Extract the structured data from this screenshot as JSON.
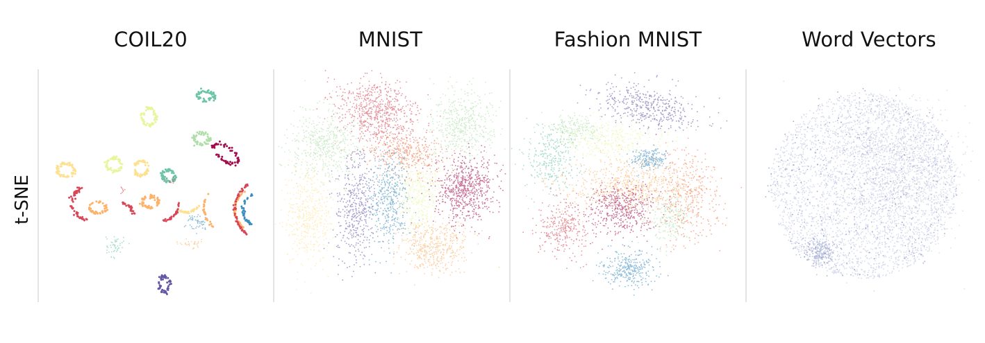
{
  "row_label": "t-SNE",
  "chart_data": [
    {
      "type": "scatter",
      "title": "COIL20",
      "xlabel": "",
      "ylabel": "",
      "grid": false,
      "legend": "none",
      "axis_range": [
        -1,
        1
      ],
      "palette": [
        "#9e0142",
        "#d53e4f",
        "#f46d43",
        "#fdae61",
        "#fee08b",
        "#e6f598",
        "#abdda4",
        "#66c2a5",
        "#3288bd",
        "#5e4fa2"
      ],
      "clusters": [
        {
          "shape": "ring",
          "color": "#66c2a5",
          "x": 0.46,
          "y": 0.82,
          "rx": 0.08,
          "ry": 0.04,
          "n": 60,
          "spread": 0.01
        },
        {
          "shape": "ring",
          "color": "#e6f598",
          "x": -0.06,
          "y": 0.63,
          "rx": 0.06,
          "ry": 0.08,
          "n": 60,
          "spread": 0.008
        },
        {
          "shape": "ring",
          "color": "#abdda4",
          "x": 0.42,
          "y": 0.43,
          "rx": 0.07,
          "ry": 0.05,
          "n": 60,
          "spread": 0.008
        },
        {
          "shape": "ring",
          "color": "#9e0142",
          "x": 0.64,
          "y": 0.29,
          "rx": 0.13,
          "ry": 0.06,
          "rot": -35,
          "n": 70,
          "spread": 0.008
        },
        {
          "shape": "ring",
          "color": "#fee08b",
          "x": -0.82,
          "y": 0.14,
          "rx": 0.08,
          "ry": 0.06,
          "n": 60,
          "spread": 0.008
        },
        {
          "shape": "ring",
          "color": "#e6f598",
          "x": -0.38,
          "y": 0.19,
          "rx": 0.07,
          "ry": 0.06,
          "n": 60,
          "spread": 0.008
        },
        {
          "shape": "ring",
          "color": "#fee08b",
          "x": -0.13,
          "y": 0.16,
          "rx": 0.06,
          "ry": 0.07,
          "n": 60,
          "spread": 0.008
        },
        {
          "shape": "ring",
          "color": "#66c2a5",
          "x": 0.12,
          "y": 0.09,
          "rx": 0.06,
          "ry": 0.05,
          "n": 60,
          "spread": 0.008
        },
        {
          "shape": "arc",
          "color": "#d53e4f",
          "x": -0.6,
          "y": -0.16,
          "r": 0.16,
          "a0": 120,
          "a1": 260,
          "n": 50,
          "spread": 0.008
        },
        {
          "shape": "ring",
          "color": "#fdae61",
          "x": -0.53,
          "y": -0.2,
          "rx": 0.08,
          "ry": 0.05,
          "n": 50,
          "spread": 0.008
        },
        {
          "shape": "ring",
          "color": "#fdae61",
          "x": -0.05,
          "y": -0.15,
          "rx": 0.08,
          "ry": 0.05,
          "n": 55,
          "spread": 0.008
        },
        {
          "shape": "arc",
          "color": "#d53e4f",
          "x": -0.32,
          "y": -0.28,
          "r": 0.12,
          "a0": 10,
          "a1": 80,
          "n": 25,
          "spread": 0.006
        },
        {
          "shape": "arc",
          "color": "#d53e4f",
          "x": 0.05,
          "y": -0.16,
          "r": 0.16,
          "a0": 280,
          "a1": 360,
          "n": 30,
          "spread": 0.006
        },
        {
          "shape": "arc",
          "color": "#fdae61",
          "x": 0.92,
          "y": -0.22,
          "r": 0.2,
          "a0": 120,
          "a1": 240,
          "n": 45,
          "spread": 0.006
        },
        {
          "shape": "arc",
          "color": "#3288bd",
          "x": 0.96,
          "y": -0.22,
          "r": 0.16,
          "a0": 120,
          "a1": 240,
          "n": 40,
          "spread": 0.006
        },
        {
          "shape": "arc",
          "color": "#d53e4f",
          "x": 1.0,
          "y": -0.22,
          "r": 0.28,
          "a0": 125,
          "a1": 235,
          "n": 55,
          "spread": 0.006
        },
        {
          "shape": "arc",
          "color": "#fee08b",
          "x": 0.28,
          "y": -0.1,
          "r": 0.14,
          "a0": 240,
          "a1": 330,
          "n": 30,
          "spread": 0.006
        },
        {
          "shape": "blob",
          "color": "#3288bd",
          "x": 0.37,
          "y": -0.33,
          "sx": 0.05,
          "sy": 0.04,
          "n": 50
        },
        {
          "shape": "arc",
          "color": "#fdae61",
          "x": 0.66,
          "y": -0.2,
          "r": 0.22,
          "a0": 140,
          "a1": 230,
          "n": 30,
          "spread": 0.006
        },
        {
          "shape": "blob",
          "color": "#fdae61",
          "x": 0.32,
          "y": -0.53,
          "sx": 0.07,
          "sy": 0.02,
          "n": 30
        },
        {
          "shape": "blob",
          "color": "#66c2a5",
          "x": -0.37,
          "y": -0.55,
          "sx": 0.04,
          "sy": 0.05,
          "n": 50
        },
        {
          "shape": "ring",
          "color": "#5e4fa2",
          "x": 0.08,
          "y": -0.9,
          "rx": 0.05,
          "ry": 0.07,
          "n": 50,
          "spread": 0.008
        },
        {
          "shape": "blob",
          "color": "#d53e4f",
          "x": 0.12,
          "y": 0.04,
          "sx": 0.03,
          "sy": 0.02,
          "n": 10
        },
        {
          "shape": "blob",
          "color": "#d53e4f",
          "x": -0.3,
          "y": -0.05,
          "sx": 0.02,
          "sy": 0.02,
          "n": 8
        }
      ]
    },
    {
      "type": "scatter",
      "title": "MNIST",
      "xlabel": "",
      "ylabel": "",
      "grid": false,
      "legend": "none",
      "axis_range": [
        -1,
        1
      ],
      "clusters": [
        {
          "shape": "blob",
          "color": "#d53e4f",
          "x": -0.12,
          "y": 0.68,
          "sx": 0.2,
          "sy": 0.13,
          "rot": -20,
          "n": 650
        },
        {
          "shape": "blob",
          "color": "#abdda4",
          "x": -0.6,
          "y": 0.38,
          "sx": 0.16,
          "sy": 0.16,
          "n": 500
        },
        {
          "shape": "blob",
          "color": "#abdda4",
          "x": 0.64,
          "y": 0.55,
          "sx": 0.14,
          "sy": 0.18,
          "n": 500
        },
        {
          "shape": "blob",
          "color": "#f46d43",
          "x": 0.12,
          "y": 0.3,
          "sx": 0.18,
          "sy": 0.09,
          "rot": -10,
          "n": 400
        },
        {
          "shape": "blob",
          "color": "#5e4fa2",
          "x": -0.32,
          "y": -0.2,
          "sx": 0.09,
          "sy": 0.25,
          "n": 450
        },
        {
          "shape": "blob",
          "color": "#3288bd",
          "x": -0.02,
          "y": -0.12,
          "sx": 0.09,
          "sy": 0.22,
          "n": 450
        },
        {
          "shape": "blob",
          "color": "#e6f598",
          "x": 0.25,
          "y": -0.08,
          "sx": 0.1,
          "sy": 0.17,
          "n": 350
        },
        {
          "shape": "blob",
          "color": "#9e0142",
          "x": 0.68,
          "y": -0.03,
          "sx": 0.14,
          "sy": 0.14,
          "n": 650
        },
        {
          "shape": "blob",
          "color": "#fee08b",
          "x": -0.75,
          "y": -0.28,
          "sx": 0.11,
          "sy": 0.24,
          "n": 450
        },
        {
          "shape": "blob",
          "color": "#fdae61",
          "x": 0.38,
          "y": -0.55,
          "sx": 0.16,
          "sy": 0.12,
          "n": 450
        }
      ]
    },
    {
      "type": "scatter",
      "title": "Fashion MNIST",
      "xlabel": "",
      "ylabel": "",
      "grid": false,
      "legend": "none",
      "axis_range": [
        -1,
        1
      ],
      "clusters": [
        {
          "shape": "blob",
          "color": "#5e4fa2",
          "x": 0.18,
          "y": 0.72,
          "sx": 0.22,
          "sy": 0.09,
          "rot": -10,
          "n": 450
        },
        {
          "shape": "blob",
          "color": "#abdda4",
          "x": -0.48,
          "y": 0.52,
          "sx": 0.12,
          "sy": 0.06,
          "n": 200
        },
        {
          "shape": "blob",
          "color": "#e6f598",
          "x": -0.12,
          "y": 0.42,
          "sx": 0.22,
          "sy": 0.08,
          "n": 300
        },
        {
          "shape": "blob",
          "color": "#66c2a5",
          "x": -0.68,
          "y": 0.25,
          "sx": 0.12,
          "sy": 0.15,
          "n": 300
        },
        {
          "shape": "blob",
          "color": "#3288bd",
          "x": 0.2,
          "y": 0.25,
          "sx": 0.08,
          "sy": 0.05,
          "n": 200
        },
        {
          "shape": "blob",
          "color": "#fdae61",
          "x": 0.02,
          "y": 0.0,
          "sx": 0.32,
          "sy": 0.12,
          "n": 650
        },
        {
          "shape": "blob",
          "color": "#9e0142",
          "x": -0.05,
          "y": -0.2,
          "sx": 0.14,
          "sy": 0.12,
          "n": 450
        },
        {
          "shape": "blob",
          "color": "#f46d43",
          "x": 0.55,
          "y": -0.1,
          "sx": 0.15,
          "sy": 0.22,
          "n": 350
        },
        {
          "shape": "blob",
          "color": "#abdda4",
          "x": 0.38,
          "y": -0.3,
          "sx": 0.1,
          "sy": 0.12,
          "n": 200
        },
        {
          "shape": "blob",
          "color": "#d53e4f",
          "x": -0.58,
          "y": -0.38,
          "sx": 0.12,
          "sy": 0.12,
          "n": 300
        },
        {
          "shape": "blob",
          "color": "#3288bd",
          "x": 0.02,
          "y": -0.75,
          "sx": 0.12,
          "sy": 0.08,
          "n": 300
        }
      ]
    },
    {
      "type": "scatter",
      "title": "Word Vectors",
      "xlabel": "",
      "ylabel": "",
      "grid": false,
      "legend": "none",
      "axis_range": [
        -1,
        1
      ],
      "clusters": [
        {
          "shape": "disc",
          "color": "#4a5aa8",
          "x": 0.0,
          "y": 0.0,
          "r": 0.85,
          "n": 3400,
          "opacity": 0.22
        },
        {
          "shape": "blob",
          "color": "#4a5aa8",
          "x": 0.3,
          "y": 0.15,
          "sx": 0.3,
          "sy": 0.3,
          "n": 1200,
          "opacity": 0.18
        },
        {
          "shape": "blob",
          "color": "#4a5aa8",
          "x": -0.4,
          "y": -0.6,
          "sx": 0.08,
          "sy": 0.06,
          "n": 250,
          "opacity": 0.35
        },
        {
          "shape": "disc",
          "color": "#4a5aa8",
          "x": 0.0,
          "y": 0.0,
          "r": 0.9,
          "n": 250,
          "opacity": 0.5
        }
      ]
    }
  ]
}
